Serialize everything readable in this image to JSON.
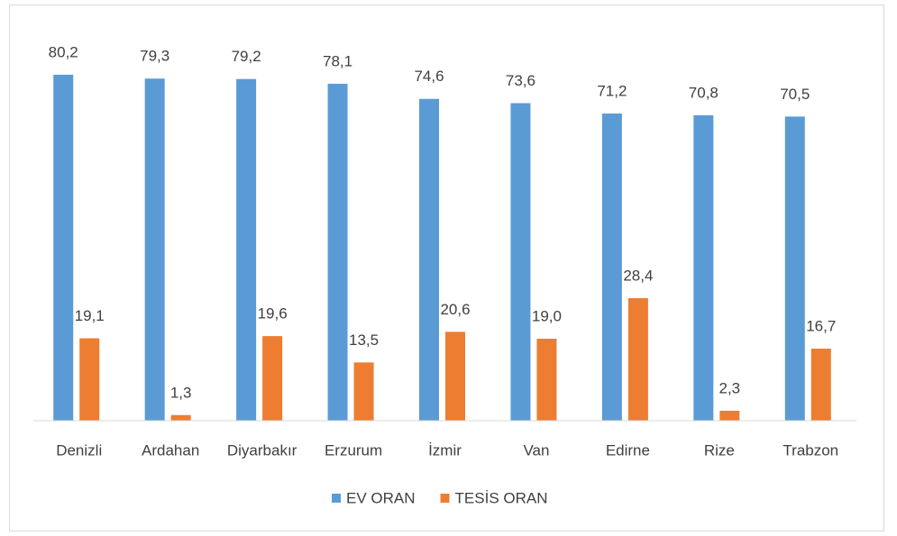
{
  "chart_data": {
    "type": "bar",
    "categories": [
      "Denizli",
      "Ardahan",
      "Diyarbakır",
      "Erzurum",
      "İzmir",
      "Van",
      "Edirne",
      "Rize",
      "Trabzon"
    ],
    "series": [
      {
        "name": "EV ORAN",
        "color": "#5b9bd5",
        "values": [
          80.2,
          79.3,
          79.2,
          78.1,
          74.6,
          73.6,
          71.2,
          70.8,
          70.5
        ],
        "value_labels": [
          "80,2",
          "79,3",
          "79,2",
          "78,1",
          "74,6",
          "73,6",
          "71,2",
          "70,8",
          "70,5"
        ]
      },
      {
        "name": "TESİS ORAN",
        "color": "#ed7d31",
        "values": [
          19.1,
          1.3,
          19.6,
          13.5,
          20.6,
          19.0,
          28.4,
          2.3,
          16.7
        ],
        "value_labels": [
          "19,1",
          "1,3",
          "19,6",
          "13,5",
          "20,6",
          "19,0",
          "28,4",
          "2,3",
          "16,7"
        ]
      }
    ],
    "ylim": [
      0,
      90
    ],
    "legend": "bottom"
  }
}
